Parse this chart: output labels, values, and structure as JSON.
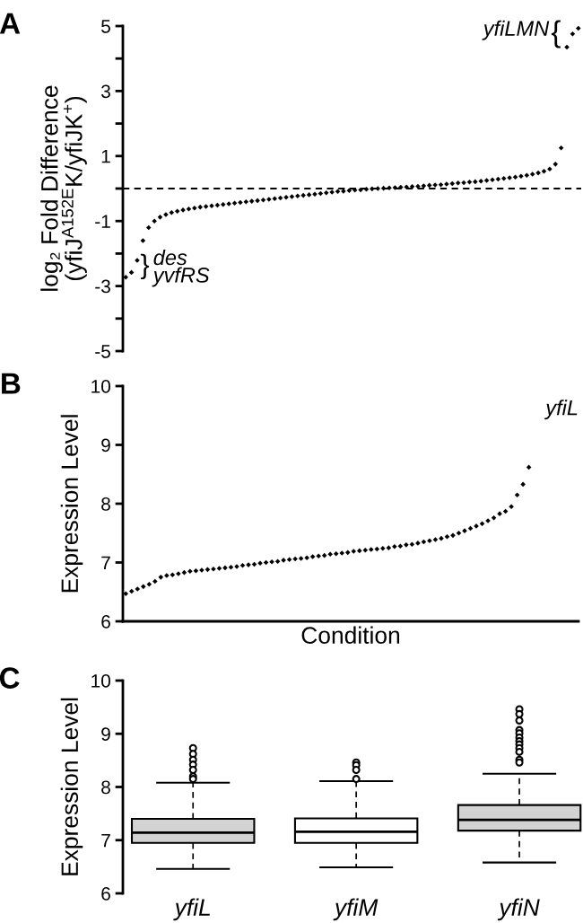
{
  "chart_data": [
    {
      "type": "scatter",
      "ylabel": "log₂ Fold Difference\n(yfiJ$^{A152E}$K/yfiJK$^{+}$)",
      "color": "#000000",
      "marker": "diamond",
      "tick_labels": "y",
      "categories": [
        null,
        null,
        null,
        null,
        null,
        null,
        null,
        null,
        null,
        null,
        null,
        null,
        null,
        null,
        null,
        null,
        null,
        null,
        null,
        null,
        null,
        null,
        null,
        null,
        null,
        null,
        null,
        null,
        null,
        null,
        null,
        null,
        null,
        null,
        null,
        null,
        null,
        null,
        null,
        null,
        null,
        null,
        null,
        null,
        null,
        null,
        null,
        null,
        null,
        null,
        null,
        null,
        null,
        null,
        null,
        null,
        null,
        null,
        null,
        null,
        null,
        null,
        null,
        null,
        null,
        null,
        null,
        null,
        null,
        null,
        null,
        null,
        null,
        null,
        null,
        null,
        null,
        null,
        null,
        null
      ],
      "values": [
        -2.73,
        -2.58,
        -2.21,
        -1.6,
        -1.2,
        -1.0,
        -0.88,
        -0.8,
        -0.74,
        -0.7,
        -0.66,
        -0.63,
        -0.6,
        -0.57,
        -0.55,
        -0.53,
        -0.51,
        -0.49,
        -0.47,
        -0.45,
        -0.43,
        -0.41,
        -0.39,
        -0.37,
        -0.35,
        -0.33,
        -0.31,
        -0.29,
        -0.27,
        -0.25,
        -0.23,
        -0.21,
        -0.19,
        -0.17,
        -0.15,
        -0.13,
        -0.11,
        -0.09,
        -0.08,
        -0.06,
        -0.05,
        -0.04,
        -0.02,
        -0.01,
        0.0,
        0.01,
        0.02,
        0.03,
        0.04,
        0.05,
        0.06,
        0.07,
        0.08,
        0.1,
        0.11,
        0.12,
        0.14,
        0.15,
        0.17,
        0.18,
        0.2,
        0.21,
        0.23,
        0.25,
        0.27,
        0.29,
        0.31,
        0.33,
        0.35,
        0.38,
        0.41,
        0.44,
        0.48,
        0.53,
        0.6,
        0.75,
        1.25,
        4.35,
        4.76,
        4.93
      ],
      "ylim": [
        -5,
        5
      ],
      "yticks": [
        -5,
        {
          "value": -4,
          "label": null
        },
        -3,
        {
          "value": -2,
          "label": null
        },
        -1,
        {
          "value": 0,
          "label": null
        },
        1,
        {
          "value": 2,
          "label": null
        },
        3,
        {
          "value": 4,
          "label": null
        },
        5
      ],
      "ref_lines": [
        {
          "axis": "y",
          "value": 0,
          "line_style": "dashed",
          "color": "#000000"
        }
      ],
      "annotations": [
        "A",
        "yfiLMN",
        "{",
        "}",
        "des",
        "yvfRS"
      ]
    },
    {
      "type": "scatter",
      "ylabel": "Expression Level",
      "xlabel": "Condition",
      "color": "#000000",
      "marker": "diamond",
      "tick_labels": "y",
      "categories": [
        null,
        null,
        null,
        null,
        null,
        null,
        null,
        null,
        null,
        null,
        null,
        null,
        null,
        null,
        null,
        null,
        null,
        null,
        null,
        null,
        null,
        null,
        null,
        null,
        null,
        null,
        null,
        null,
        null,
        null,
        null,
        null,
        null,
        null,
        null,
        null,
        null,
        null,
        null,
        null,
        null,
        null,
        null,
        null,
        null,
        null,
        null,
        null,
        null,
        null,
        null,
        null,
        null,
        null,
        null,
        null,
        null,
        null,
        null,
        null,
        null,
        null,
        null,
        null,
        null,
        null,
        null,
        null,
        null,
        null,
        null,
        null,
        null,
        null,
        null,
        null,
        null,
        null
      ],
      "values": [
        6.47,
        6.51,
        6.55,
        6.59,
        6.63,
        6.68,
        6.75,
        6.78,
        6.79,
        6.81,
        6.83,
        6.85,
        6.86,
        6.87,
        6.88,
        6.89,
        6.9,
        6.91,
        6.92,
        6.93,
        6.95,
        6.96,
        6.97,
        6.99,
        7.0,
        7.01,
        7.02,
        7.04,
        7.05,
        7.06,
        7.07,
        7.08,
        7.1,
        7.11,
        7.12,
        7.14,
        7.15,
        7.16,
        7.17,
        7.19,
        7.2,
        7.21,
        7.22,
        7.23,
        7.24,
        7.25,
        7.27,
        7.28,
        7.3,
        7.31,
        7.33,
        7.35,
        7.37,
        7.39,
        7.41,
        7.44,
        7.46,
        7.5,
        7.54,
        7.58,
        7.62,
        7.66,
        7.71,
        7.76,
        7.83,
        7.87,
        7.95,
        8.15,
        8.33,
        8.62,
        null,
        null,
        null,
        null,
        null,
        null,
        null,
        null
      ],
      "ylim": [
        6,
        10
      ],
      "yticks": [
        6,
        7,
        8,
        9,
        10
      ],
      "annotations": [
        "B",
        "yfiL"
      ]
    },
    {
      "type": "box",
      "ylabel": "Expression Level",
      "categories": [
        "yfiL",
        "yfiM",
        "yfiN"
      ],
      "colors": [
        "#d3d3d3",
        "#ffffff",
        "#d3d3d3"
      ],
      "boxes": [
        {
          "low": 6.46,
          "q1": 6.95,
          "median": 7.14,
          "q3": 7.4,
          "high": 8.08,
          "outliers": [
            8.73,
            8.62,
            8.51,
            8.42,
            8.32,
            8.2,
            8.15
          ]
        },
        {
          "low": 6.49,
          "q1": 6.95,
          "median": 7.16,
          "q3": 7.41,
          "high": 8.11,
          "outliers": [
            8.46,
            8.41,
            8.32,
            8.15
          ]
        },
        {
          "low": 6.58,
          "q1": 7.18,
          "median": 7.38,
          "q3": 7.66,
          "high": 8.25,
          "outliers": [
            9.46,
            9.37,
            9.25,
            9.07,
            9.01,
            8.93,
            8.86,
            8.8,
            8.73,
            8.66,
            8.51,
            8.46
          ]
        }
      ],
      "ylim": [
        6,
        10
      ],
      "yticks": [
        6,
        7,
        8,
        9,
        10
      ],
      "annotations": [
        "C"
      ]
    }
  ]
}
